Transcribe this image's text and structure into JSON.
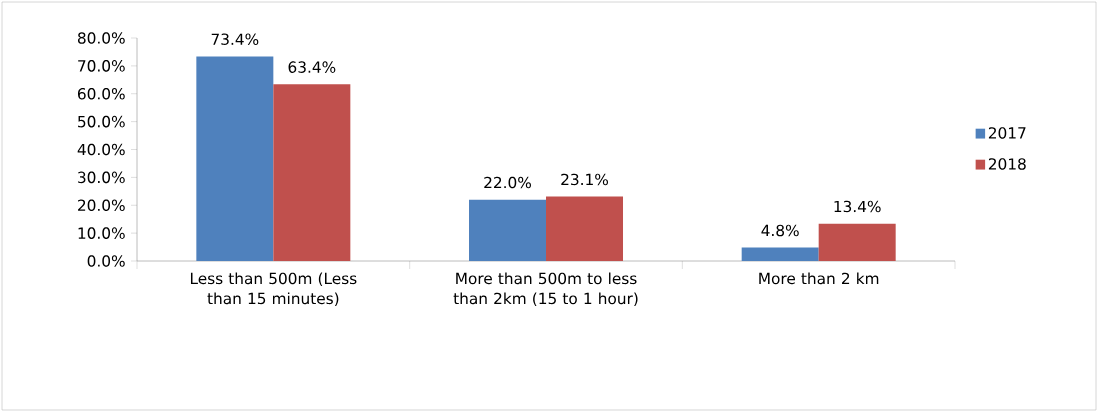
{
  "chart_data": {
    "type": "bar",
    "categories": [
      "Less than 500m (Less than 15 minutes)",
      "More than 500m to less than 2km (15 to 1 hour)",
      "More than 2 km"
    ],
    "series": [
      {
        "name": "2017",
        "color": "#4f81bd",
        "values": [
          73.4,
          22.0,
          4.8
        ],
        "value_labels": [
          "73.4%",
          "22.0%",
          "4.8%"
        ]
      },
      {
        "name": "2018",
        "color": "#c0504d",
        "values": [
          63.4,
          23.1,
          13.4
        ],
        "value_labels": [
          "63.4%",
          "23.1%",
          "13.4%"
        ]
      }
    ],
    "ylim": [
      0,
      80
    ],
    "yticks": [
      {
        "value": 0,
        "label": "0.0%"
      },
      {
        "value": 10,
        "label": "10.0%"
      },
      {
        "value": 20,
        "label": "20.0%"
      },
      {
        "value": 30,
        "label": "30.0%"
      },
      {
        "value": 40,
        "label": "40.0%"
      },
      {
        "value": 50,
        "label": "50.0%"
      },
      {
        "value": 60,
        "label": "60.0%"
      },
      {
        "value": 70,
        "label": "70.0%"
      },
      {
        "value": 80,
        "label": "80.0%"
      }
    ],
    "grid": false,
    "legend": "right"
  }
}
